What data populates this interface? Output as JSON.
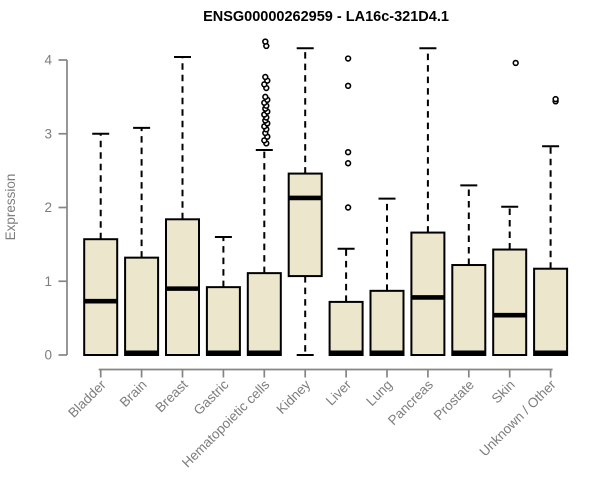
{
  "chart_data": {
    "type": "boxplot",
    "title": "ENSG00000262959 - LA16c-321D4.1",
    "xlabel": "",
    "ylabel": "Expression",
    "yticks": [
      0,
      1,
      2,
      3,
      4
    ],
    "ylim": [
      0,
      4.3
    ],
    "grid": false,
    "legend": "none",
    "categories": [
      "Bladder",
      "Brain",
      "Breast",
      "Gastric",
      "Hematopoietic cells",
      "Kidney",
      "Liver",
      "Lung",
      "Pancreas",
      "Prostate",
      "Skin",
      "Unknown / Other"
    ],
    "boxes": [
      {
        "category": "Bladder",
        "min": 0,
        "q1": 0,
        "median": 0.73,
        "q3": 1.57,
        "max": 3.0,
        "outliers": [],
        "outlier_dx": []
      },
      {
        "category": "Brain",
        "min": 0,
        "q1": 0,
        "median": 0.03,
        "q3": 1.32,
        "max": 3.08,
        "outliers": [],
        "outlier_dx": []
      },
      {
        "category": "Breast",
        "min": 0,
        "q1": 0,
        "median": 0.9,
        "q3": 1.84,
        "max": 4.04,
        "outliers": [],
        "outlier_dx": []
      },
      {
        "category": "Gastric",
        "min": 0,
        "q1": 0,
        "median": 0.03,
        "q3": 0.92,
        "max": 1.6,
        "outliers": [],
        "outlier_dx": []
      },
      {
        "category": "Hematopoietic cells",
        "min": 0,
        "q1": 0,
        "median": 0.03,
        "q3": 1.11,
        "max": 2.78,
        "outliers": [
          2.87,
          2.91,
          2.96,
          3.01,
          3.06,
          3.1,
          3.14,
          3.18,
          3.22,
          3.26,
          3.3,
          3.34,
          3.38,
          3.42,
          3.46,
          3.5,
          3.62,
          3.67,
          3.72,
          3.77,
          4.19,
          4.25
        ],
        "outlier_dx": [
          2,
          0,
          3,
          1,
          2,
          0,
          3,
          1,
          2,
          0,
          3,
          1,
          2,
          0,
          3,
          1,
          2,
          0,
          3,
          1,
          2,
          1
        ]
      },
      {
        "category": "Kidney",
        "min": 0,
        "q1": 1.07,
        "median": 2.13,
        "q3": 2.46,
        "max": 4.16,
        "outliers": [],
        "outlier_dx": []
      },
      {
        "category": "Liver",
        "min": 0,
        "q1": 0,
        "median": 0.03,
        "q3": 0.72,
        "max": 1.44,
        "outliers": [
          2.0,
          2.6,
          2.75,
          3.65,
          4.02
        ],
        "outlier_dx": [
          2,
          2,
          2,
          2,
          2
        ]
      },
      {
        "category": "Lung",
        "min": 0,
        "q1": 0,
        "median": 0.03,
        "q3": 0.87,
        "max": 2.12,
        "outliers": [],
        "outlier_dx": []
      },
      {
        "category": "Pancreas",
        "min": 0,
        "q1": 0,
        "median": 0.78,
        "q3": 1.66,
        "max": 4.16,
        "outliers": [],
        "outlier_dx": []
      },
      {
        "category": "Prostate",
        "min": 0,
        "q1": 0,
        "median": 0.03,
        "q3": 1.22,
        "max": 2.3,
        "outliers": [],
        "outlier_dx": []
      },
      {
        "category": "Skin",
        "min": 0,
        "q1": 0,
        "median": 0.54,
        "q3": 1.43,
        "max": 2.01,
        "outliers": [
          3.96
        ],
        "outlier_dx": [
          6
        ]
      },
      {
        "category": "Unknown / Other",
        "min": 0,
        "q1": 0,
        "median": 0.03,
        "q3": 1.17,
        "max": 2.83,
        "outliers": [
          3.44,
          3.47
        ],
        "outlier_dx": [
          5,
          5
        ]
      }
    ],
    "colors": {
      "box_fill": "#ECE7CC",
      "box_stroke": "#000000",
      "median": "#000000",
      "whisker": "#000000",
      "outlier_stroke": "#000000",
      "axis": "#858585",
      "tick_text": "#7D7D7D",
      "title_text": "#000000",
      "background": "#FFFFFF"
    }
  }
}
